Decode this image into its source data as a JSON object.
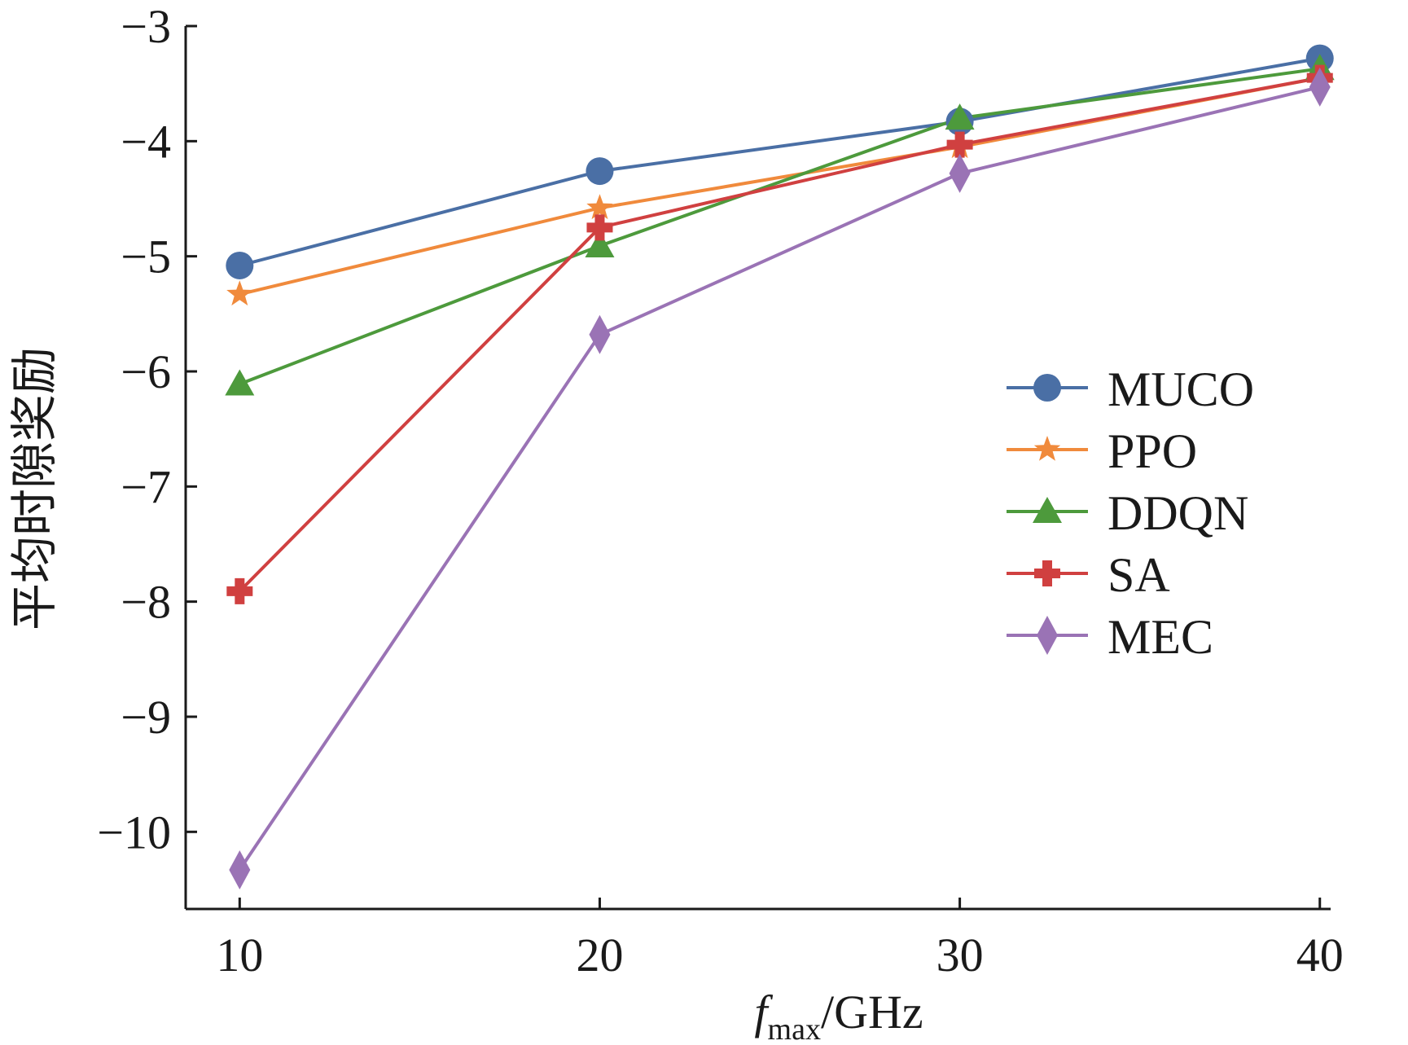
{
  "chart_data": {
    "type": "line",
    "title": "",
    "xlabel": {
      "main": "f",
      "subscript": "max",
      "unit": "/GHz"
    },
    "ylabel": "平均时隙奖励",
    "x": [
      10,
      20,
      30,
      40
    ],
    "xticks": [
      10,
      20,
      30,
      40
    ],
    "yticks": [
      -3,
      -4,
      -5,
      -6,
      -7,
      -8,
      -9,
      -10
    ],
    "xlim": [
      8.5,
      40.3
    ],
    "ylim": [
      -10.67,
      -3.0
    ],
    "grid": false,
    "legend_position": "right",
    "series": [
      {
        "name": "MUCO",
        "values": [
          -5.08,
          -4.26,
          -3.83,
          -3.28
        ],
        "color": "#4a6fa5",
        "marker": "circle"
      },
      {
        "name": "PPO",
        "values": [
          -5.33,
          -4.58,
          -4.05,
          -3.45
        ],
        "color": "#f08a3c",
        "marker": "star"
      },
      {
        "name": "DDQN",
        "values": [
          -6.11,
          -4.91,
          -3.8,
          -3.37
        ],
        "color": "#4d9a3c",
        "marker": "triangle"
      },
      {
        "name": "SA",
        "values": [
          -7.91,
          -4.75,
          -4.03,
          -3.45
        ],
        "color": "#d04040",
        "marker": "plus"
      },
      {
        "name": "MEC",
        "values": [
          -10.33,
          -5.68,
          -4.28,
          -3.53
        ],
        "color": "#9a73b5",
        "marker": "diamond"
      }
    ]
  }
}
